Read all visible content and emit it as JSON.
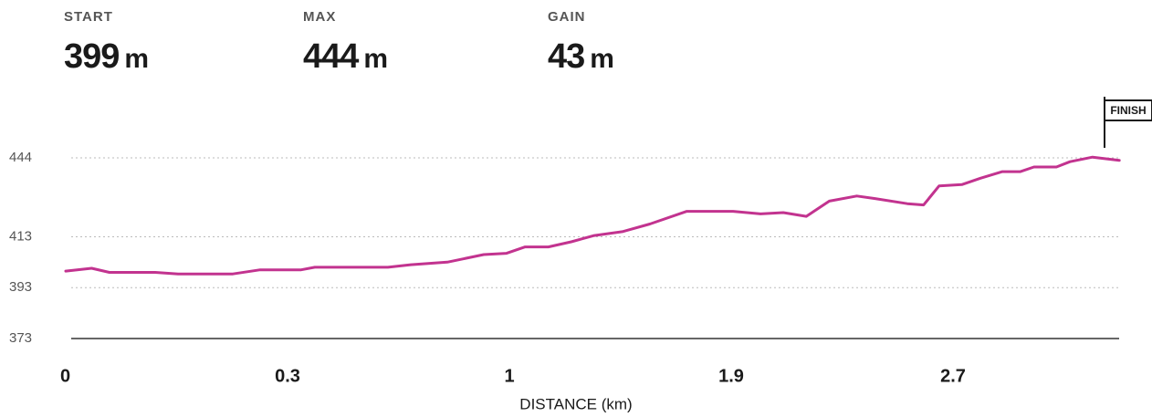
{
  "stats": [
    {
      "label": "START",
      "value": 399,
      "unit": "m"
    },
    {
      "label": "MAX",
      "value": 444,
      "unit": "m"
    },
    {
      "label": "GAIN",
      "value": 43,
      "unit": "m"
    }
  ],
  "chart_data": {
    "type": "line",
    "annotation": "FINISH",
    "x_label": "DISTANCE (km)",
    "color": "#c2338f",
    "x": [
      0,
      0.035,
      0.059,
      0.121,
      0.152,
      0.226,
      0.263,
      0.343,
      0.386,
      0.617,
      0.689,
      0.804,
      0.919,
      0.991,
      1.064,
      1.158,
      1.251,
      1.345,
      1.458,
      1.57,
      1.72,
      1.907,
      2.006,
      2.088,
      2.171,
      2.254,
      2.353,
      2.419,
      2.535,
      2.594,
      2.65,
      2.732,
      2.799,
      2.878,
      2.943,
      2.992,
      3.073,
      3.122,
      3.203,
      3.3
    ],
    "values": [
      399.5,
      400.6,
      399,
      399,
      398.4,
      398.4,
      400,
      400,
      401,
      401,
      402,
      403,
      406,
      406.5,
      409,
      409,
      411,
      413.5,
      415,
      418,
      423,
      423,
      422,
      422.5,
      421,
      427,
      429,
      428,
      426,
      425.5,
      433,
      433.5,
      436,
      438.6,
      438.6,
      440.4,
      440.4,
      442.5,
      444.3,
      443
    ],
    "xlim": [
      0,
      3.3
    ],
    "xticks": [
      0,
      0.3,
      1,
      1.9,
      2.7
    ],
    "ylim": [
      373,
      444
    ],
    "yticks": [
      373,
      393,
      413,
      444
    ],
    "grid": true
  }
}
